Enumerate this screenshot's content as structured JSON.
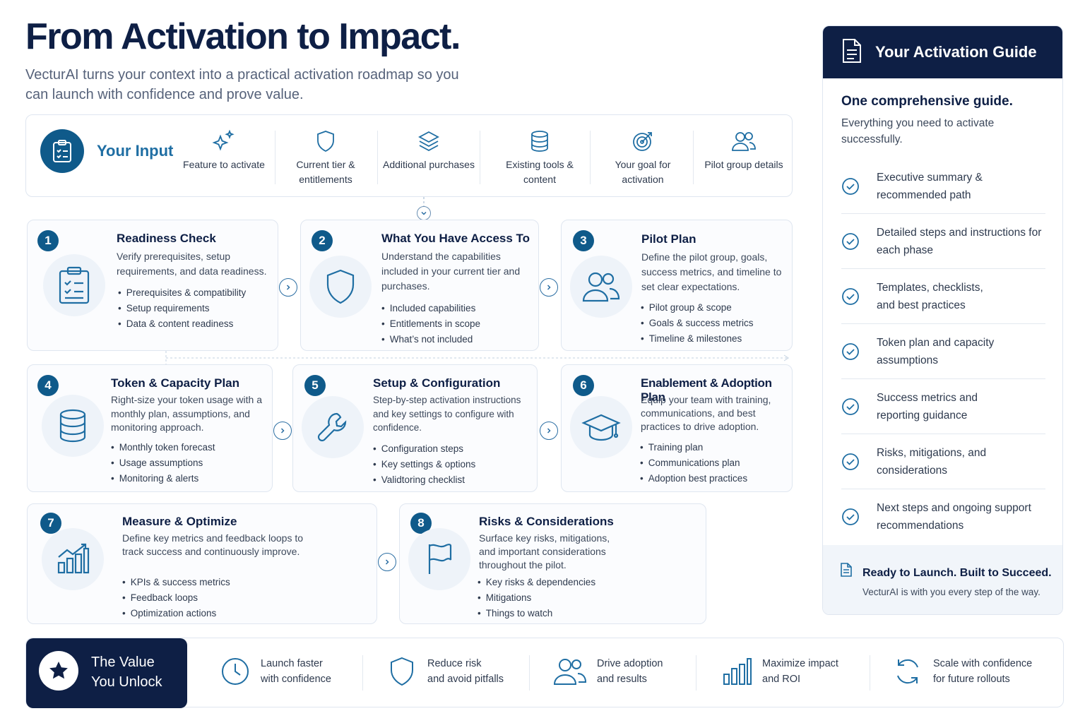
{
  "header": {
    "title": "From Activation to Impact.",
    "subtitle": "VecturAI turns your context into a practical activation roadmap so you can launch with confidence and prove value."
  },
  "input": {
    "title": "Your Input",
    "items": [
      {
        "label": "Feature to activate",
        "icon": "sparkle-icon"
      },
      {
        "label": "Current tier & entitlements",
        "icon": "shield-icon"
      },
      {
        "label": "Additional purchases",
        "icon": "layers-icon"
      },
      {
        "label": "Existing tools & content",
        "icon": "database-icon"
      },
      {
        "label": "Your goal for activation",
        "icon": "target-icon"
      },
      {
        "label": "Pilot group details",
        "icon": "users-icon"
      }
    ]
  },
  "steps": [
    {
      "num": "1",
      "title": "Readiness Check",
      "desc": "Verify prerequisites, setup requirements, and data readiness.",
      "bullets": [
        "Prerequisites & compatibility",
        "Setup requirements",
        "Data & content readiness"
      ]
    },
    {
      "num": "2",
      "title": "What You Have Access To",
      "desc": "Understand the capabilities included in your current tier and purchases.",
      "bullets": [
        "Included capabilities",
        "Entitlements in scope",
        "What’s not included"
      ]
    },
    {
      "num": "3",
      "title": "Pilot Plan",
      "desc": "Define the pilot group, goals, success metrics, and timeline to set clear expectations.",
      "bullets": [
        "Pilot group & scope",
        "Goals & success metrics",
        "Timeline & milestones"
      ]
    },
    {
      "num": "4",
      "title": "Token & Capacity Plan",
      "desc": "Right-size your token usage with a monthly plan, assumptions, and monitoring approach.",
      "bullets": [
        "Monthly token forecast",
        "Usage assumptions",
        "Monitoring & alerts"
      ]
    },
    {
      "num": "5",
      "title": "Setup & Configuration",
      "desc": "Step-by-step activation instructions and key settings to configure with confidence.",
      "bullets": [
        "Configuration steps",
        "Key settings & options",
        "Validtoring checklist"
      ]
    },
    {
      "num": "6",
      "title": "Enablement & Adoption Plan",
      "desc": "Equip your team with training, communications, and best practices to drive adoption.",
      "bullets": [
        "Training plan",
        "Communications plan",
        "Adoption best practices"
      ]
    },
    {
      "num": "7",
      "title": "Measure & Optimize",
      "desc": "Define key metrics and feedback loops to track success and continuously improve.",
      "bullets": [
        "KPIs & success metrics",
        "Feedback loops",
        "Optimization actions"
      ]
    },
    {
      "num": "8",
      "title": "Risks & Considerations",
      "desc": "Surface key risks, mitigations, and important considerations throughout the pilot.",
      "bullets": [
        "Key risks & dependencies",
        "Mitigations",
        "Things to watch"
      ]
    }
  ],
  "guide": {
    "title": "Your Activation Guide",
    "intro": "One comprehensive guide.",
    "sub": "Everything you need to activate successfully.",
    "items": [
      "Executive summary & recommended path",
      "Detailed steps and instructions for each phase",
      "Templates, checklists, and best practices",
      "Token plan and capacity assumptions",
      "Success metrics and reporting guidance",
      "Risks, mitigations, and considerations",
      "Next steps and ongoing support recommendations"
    ],
    "footer_title": "Ready to Launch. Built to Succeed.",
    "footer_sub": "VecturAI is with you every step of the way."
  },
  "value": {
    "title_line1": "The Value",
    "title_line2": "You Unlock",
    "items": [
      {
        "line1": "Launch faster",
        "line2": "with confidence",
        "icon": "clock-icon"
      },
      {
        "line1": "Reduce risk",
        "line2": "and avoid pitfalls",
        "icon": "shield-icon"
      },
      {
        "line1": "Drive adoption",
        "line2": "and results",
        "icon": "users-icon"
      },
      {
        "line1": "Maximize impact",
        "line2": "and ROI",
        "icon": "bar-chart-icon"
      },
      {
        "line1": "Scale with confidence",
        "line2": "for future rollouts",
        "icon": "refresh-icon"
      }
    ]
  },
  "colors": {
    "navy": "#0e1f45",
    "accent": "#0f5a8a",
    "link": "#1f6ea3"
  }
}
